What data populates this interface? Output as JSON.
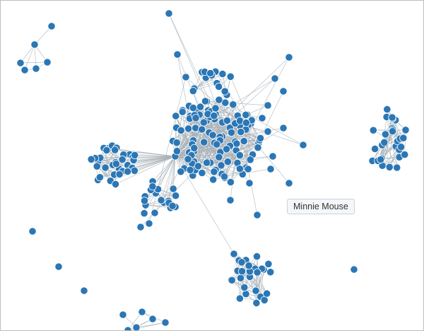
{
  "tooltip": {
    "text": "Minnie Mouse"
  },
  "colors": {
    "node": "#2b77b5",
    "link": "#a9b1b8",
    "tooltip_bg": "#f4f6f9",
    "tooltip_border": "#c9d3de"
  }
}
